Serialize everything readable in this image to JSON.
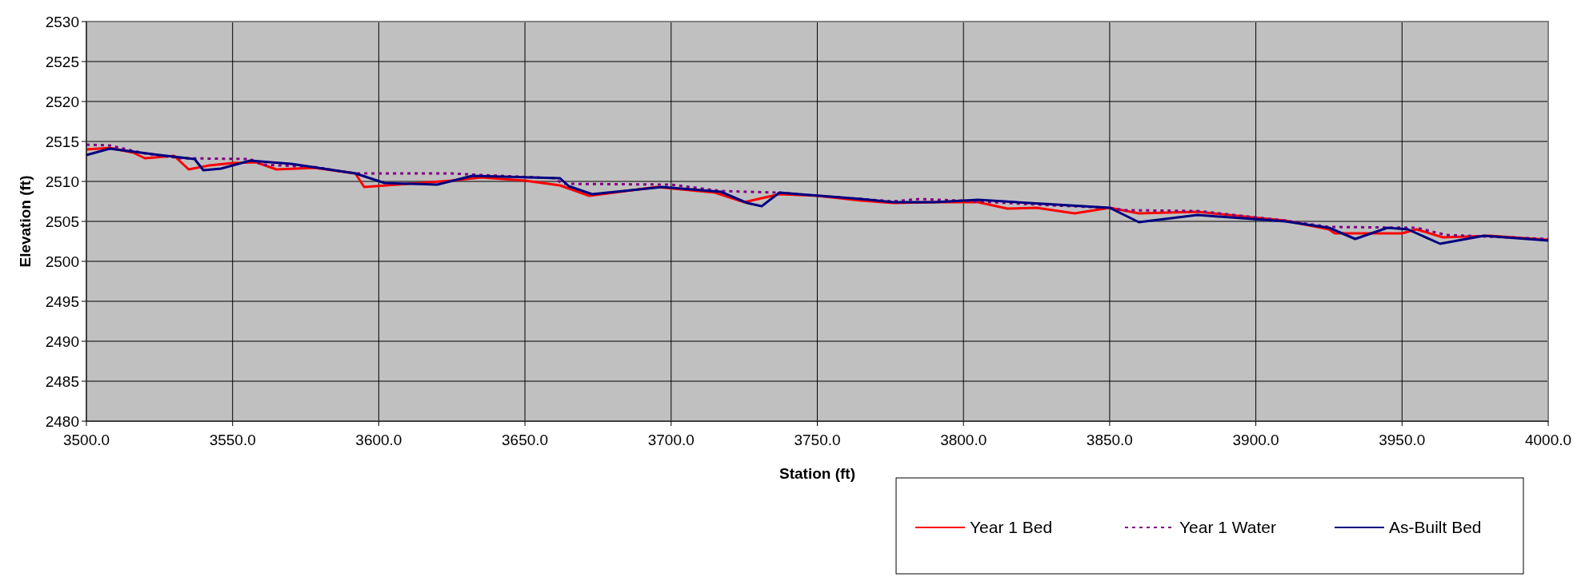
{
  "chart_data": {
    "type": "line",
    "xlabel": "Station (ft)",
    "ylabel": "Elevation (ft)",
    "xlim": [
      3500,
      4000
    ],
    "ylim": [
      2480,
      2530
    ],
    "xticks": [
      {
        "value": 3500,
        "label": "3500.0"
      },
      {
        "value": 3550,
        "label": "3550.0"
      },
      {
        "value": 3600,
        "label": "3600.0"
      },
      {
        "value": 3650,
        "label": "3650.0"
      },
      {
        "value": 3700,
        "label": "3700.0"
      },
      {
        "value": 3750,
        "label": "3750.0"
      },
      {
        "value": 3800,
        "label": "3800.0"
      },
      {
        "value": 3850,
        "label": "3850.0"
      },
      {
        "value": 3900,
        "label": "3900.0"
      },
      {
        "value": 3950,
        "label": "3950.0"
      },
      {
        "value": 4000,
        "label": "4000.0"
      }
    ],
    "yticks": [
      2480,
      2485,
      2490,
      2495,
      2500,
      2505,
      2510,
      2515,
      2520,
      2525,
      2530
    ],
    "grid": true,
    "legend": "bottom right",
    "series": [
      {
        "name": "Year 1 Bed",
        "color": "#ff0000",
        "line_style": "solid",
        "x": [
          3500,
          3508,
          3516,
          3520,
          3530,
          3535,
          3542,
          3550,
          3558,
          3565,
          3578,
          3592,
          3595,
          3610,
          3625,
          3635,
          3650,
          3662,
          3672,
          3695,
          3715,
          3725,
          3737,
          3750,
          3765,
          3776,
          3790,
          3805,
          3815,
          3825,
          3838,
          3850,
          3860,
          3880,
          3910,
          3925,
          3927,
          3950,
          3955,
          3964,
          3980,
          4000
        ],
        "values": [
          2514.0,
          2514.2,
          2513.6,
          2512.9,
          2513.2,
          2511.5,
          2512.0,
          2512.3,
          2512.4,
          2511.5,
          2511.7,
          2511.0,
          2509.3,
          2509.7,
          2510.1,
          2510.5,
          2510.1,
          2509.5,
          2508.2,
          2509.3,
          2508.6,
          2507.4,
          2508.4,
          2508.2,
          2507.6,
          2507.3,
          2507.4,
          2507.4,
          2506.6,
          2506.7,
          2506.0,
          2506.7,
          2506.0,
          2506.2,
          2505.1,
          2504.0,
          2503.5,
          2503.5,
          2504.0,
          2503.0,
          2503.2,
          2502.7
        ]
      },
      {
        "name": "Year 1 Water",
        "color": "#800080",
        "line_style": "dotted",
        "x": [
          3500,
          3508,
          3520,
          3532,
          3556,
          3560,
          3578,
          3592,
          3595,
          3625,
          3635,
          3660,
          3663,
          3700,
          3717,
          3737,
          3750,
          3776,
          3785,
          3805,
          3830,
          3850,
          3855,
          3880,
          3910,
          3925,
          3955,
          3965,
          4000
        ],
        "values": [
          2514.6,
          2514.5,
          2513.5,
          2512.9,
          2512.8,
          2512.1,
          2511.8,
          2511.0,
          2511.0,
          2511.0,
          2510.8,
          2510.4,
          2509.7,
          2509.6,
          2508.8,
          2508.6,
          2508.2,
          2507.5,
          2507.8,
          2507.5,
          2507.0,
          2506.7,
          2506.4,
          2506.3,
          2505.1,
          2504.3,
          2504.2,
          2503.3,
          2502.8
        ]
      },
      {
        "name": "As-Built Bed",
        "color": "#000080",
        "line_style": "solid",
        "x": [
          3500,
          3508,
          3525,
          3537,
          3540,
          3546,
          3556,
          3570,
          3592,
          3602,
          3620,
          3632,
          3662,
          3665,
          3673,
          3697,
          3717,
          3726,
          3731,
          3737,
          3765,
          3776,
          3790,
          3805,
          3850,
          3860,
          3880,
          3910,
          3925,
          3934,
          3945,
          3952,
          3963,
          3978,
          4000
        ],
        "values": [
          2513.3,
          2514.1,
          2513.3,
          2512.8,
          2511.4,
          2511.6,
          2512.6,
          2512.2,
          2511.0,
          2509.8,
          2509.6,
          2510.7,
          2510.4,
          2509.4,
          2508.4,
          2509.3,
          2508.7,
          2507.3,
          2506.9,
          2508.6,
          2507.8,
          2507.4,
          2507.4,
          2507.7,
          2506.7,
          2504.9,
          2505.8,
          2505.0,
          2504.2,
          2502.8,
          2504.2,
          2504.0,
          2502.2,
          2503.2,
          2502.6
        ]
      }
    ]
  }
}
